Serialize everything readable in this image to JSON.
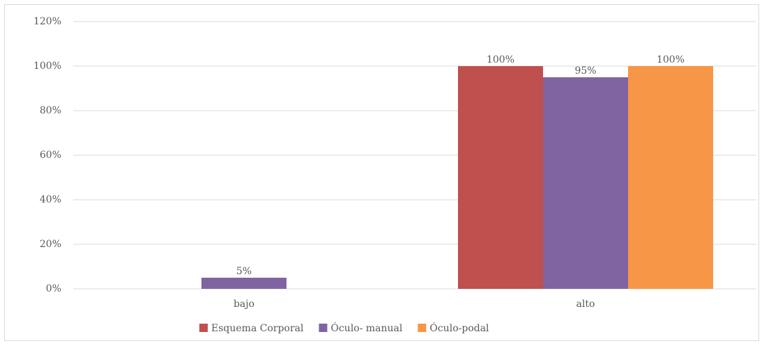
{
  "chart_data": {
    "type": "bar",
    "categories": [
      "bajo",
      "alto"
    ],
    "series": [
      {
        "name": "Esquema Corporal",
        "color": "#c0504d",
        "values": [
          null,
          100
        ],
        "value_labels": [
          null,
          "100%"
        ]
      },
      {
        "name": "Óculo- manual",
        "color": "#8064a2",
        "values": [
          5,
          95
        ],
        "value_labels": [
          "5%",
          "95%"
        ]
      },
      {
        "name": "Óculo-podal",
        "color": "#f79646",
        "values": [
          null,
          100
        ],
        "value_labels": [
          null,
          "100%"
        ]
      }
    ],
    "ylim": [
      0,
      120
    ],
    "yticks": [
      {
        "value": 0,
        "label": "0%"
      },
      {
        "value": 20,
        "label": "20%"
      },
      {
        "value": 40,
        "label": "40%"
      },
      {
        "value": 60,
        "label": "60%"
      },
      {
        "value": 80,
        "label": "80%"
      },
      {
        "value": 100,
        "label": "100%"
      },
      {
        "value": 120,
        "label": "120%"
      }
    ],
    "grid": true,
    "legend": "bottom"
  }
}
